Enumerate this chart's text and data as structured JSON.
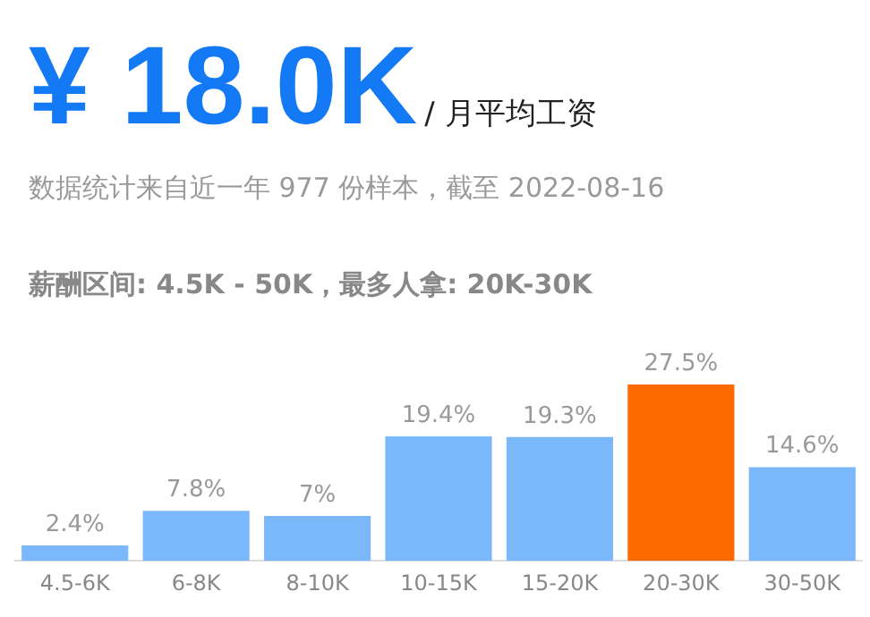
{
  "chart_data": {
    "type": "bar",
    "title": "¥ 18.0K",
    "subtitle": "/ 月平均工资",
    "annotations": [
      "数据统计来自近一年 977 份样本，截至 2022-08-16",
      "薪酬区间: 4.5K - 50K，最多人拿: 20K-30K"
    ],
    "categories": [
      "4.5-6K",
      "6-8K",
      "8-10K",
      "10-15K",
      "15-20K",
      "20-30K",
      "30-50K"
    ],
    "values": [
      2.4,
      7.8,
      7,
      19.4,
      19.3,
      27.5,
      14.6
    ],
    "colors": [
      "#7ab8fb",
      "#7ab8fb",
      "#7ab8fb",
      "#7ab8fb",
      "#7ab8fb",
      "#ff6a00",
      "#7ab8fb"
    ],
    "value_labels": [
      "2.4%",
      "7.8%",
      "7%",
      "19.4%",
      "19.3%",
      "27.5%",
      "14.6%"
    ],
    "grid": false,
    "legend": false
  }
}
